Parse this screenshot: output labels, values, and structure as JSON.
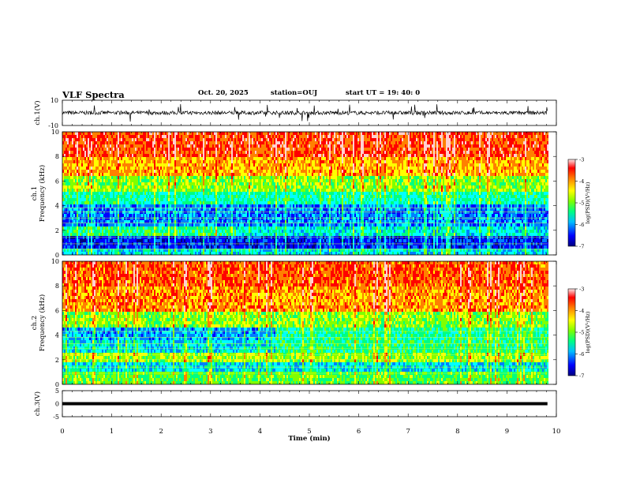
{
  "header": {
    "title": "VLF Spectra",
    "date": "Oct. 20, 2025",
    "station": "station=OUJ",
    "start": "start  UT =   19: 40: 0"
  },
  "chart_data": [
    {
      "type": "line",
      "name": "ch1-waveform",
      "ylabel": "ch.1(V)",
      "ylim": [
        -10,
        10
      ],
      "yticks": [
        "10",
        "-10"
      ],
      "xlim": [
        0,
        10
      ],
      "x_end": 9.82
    },
    {
      "type": "heatmap",
      "name": "ch1-spectrogram",
      "ylabel": "ch.1",
      "ylabel2": "Frequency  (kHz)",
      "ylim": [
        0,
        10
      ],
      "yticks": [
        "0",
        "2",
        "4",
        "6",
        "8",
        "10"
      ],
      "xlim": [
        0,
        10
      ],
      "x_end": 9.82,
      "colorbar": {
        "label": "log(PSD)(V²/Hz)",
        "range": [
          -7,
          -3
        ],
        "ticks": [
          "-3",
          "-4",
          "-5",
          "-6",
          "-7"
        ]
      }
    },
    {
      "type": "heatmap",
      "name": "ch2-spectrogram",
      "ylabel": "ch.2",
      "ylabel2": "Frequency  (kHz)",
      "ylim": [
        0,
        10
      ],
      "yticks": [
        "0",
        "2",
        "4",
        "6",
        "8",
        "10"
      ],
      "xlim": [
        0,
        10
      ],
      "x_end": 9.82,
      "colorbar": {
        "label": "log(PSD)(V²/Hz)",
        "range": [
          -7,
          -3
        ],
        "ticks": [
          "-3",
          "-4",
          "-5",
          "-6",
          "-7"
        ]
      }
    },
    {
      "type": "line",
      "name": "ch3-waveform",
      "ylabel": "ch.3(V)",
      "ylim": [
        -5,
        5
      ],
      "yticks": [
        "5",
        "0",
        "-5"
      ],
      "xlim": [
        0,
        10
      ],
      "x_end": 9.82
    }
  ],
  "xaxis": {
    "label": "Time  (min)",
    "ticks": [
      "0",
      "1",
      "2",
      "3",
      "4",
      "5",
      "6",
      "7",
      "8",
      "9",
      "10"
    ]
  },
  "colors": {
    "colormap": [
      "#000080",
      "#0000ff",
      "#0080ff",
      "#00ffff",
      "#00ff80",
      "#80ff00",
      "#ffff00",
      "#ff8000",
      "#ff0000",
      "#ffd0d0"
    ]
  }
}
